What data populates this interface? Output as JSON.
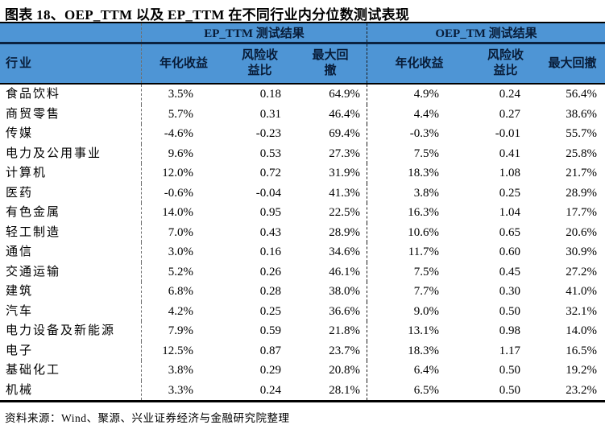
{
  "title": "图表 18、OEP_TTM 以及 EP_TTM 在不同行业内分位数测试表现",
  "table": {
    "industry_header": "行业",
    "groups": [
      {
        "label": "EP_TTM 测试结果",
        "columns": [
          "年化收益",
          "风险收益比",
          "最大回撤"
        ]
      },
      {
        "label": "OEP_TM 测试结果",
        "columns": [
          "年化收益",
          "风险收益比",
          "最大回撤"
        ]
      }
    ],
    "rows": [
      {
        "industry": "食品饮料",
        "ep": [
          "3.5%",
          "0.18",
          "64.9%"
        ],
        "oep": [
          "4.9%",
          "0.24",
          "56.4%"
        ]
      },
      {
        "industry": "商贸零售",
        "ep": [
          "5.7%",
          "0.31",
          "46.4%"
        ],
        "oep": [
          "4.4%",
          "0.27",
          "38.6%"
        ]
      },
      {
        "industry": "传媒",
        "ep": [
          "-4.6%",
          "-0.23",
          "69.4%"
        ],
        "oep": [
          "-0.3%",
          "-0.01",
          "55.7%"
        ]
      },
      {
        "industry": "电力及公用事业",
        "ep": [
          "9.6%",
          "0.53",
          "27.3%"
        ],
        "oep": [
          "7.5%",
          "0.41",
          "25.8%"
        ]
      },
      {
        "industry": "计算机",
        "ep": [
          "12.0%",
          "0.72",
          "31.9%"
        ],
        "oep": [
          "18.3%",
          "1.08",
          "21.7%"
        ]
      },
      {
        "industry": "医药",
        "ep": [
          "-0.6%",
          "-0.04",
          "41.3%"
        ],
        "oep": [
          "3.8%",
          "0.25",
          "28.9%"
        ]
      },
      {
        "industry": "有色金属",
        "ep": [
          "14.0%",
          "0.95",
          "22.5%"
        ],
        "oep": [
          "16.3%",
          "1.04",
          "17.7%"
        ]
      },
      {
        "industry": "轻工制造",
        "ep": [
          "7.0%",
          "0.43",
          "28.9%"
        ],
        "oep": [
          "10.6%",
          "0.65",
          "20.6%"
        ]
      },
      {
        "industry": "通信",
        "ep": [
          "3.0%",
          "0.16",
          "34.6%"
        ],
        "oep": [
          "11.7%",
          "0.60",
          "30.9%"
        ]
      },
      {
        "industry": "交通运输",
        "ep": [
          "5.2%",
          "0.26",
          "46.1%"
        ],
        "oep": [
          "7.5%",
          "0.45",
          "27.2%"
        ]
      },
      {
        "industry": "建筑",
        "ep": [
          "6.8%",
          "0.28",
          "38.0%"
        ],
        "oep": [
          "7.7%",
          "0.30",
          "41.0%"
        ]
      },
      {
        "industry": "汽车",
        "ep": [
          "4.2%",
          "0.25",
          "36.6%"
        ],
        "oep": [
          "9.0%",
          "0.50",
          "32.1%"
        ]
      },
      {
        "industry": "电力设备及新能源",
        "ep": [
          "7.9%",
          "0.59",
          "21.8%"
        ],
        "oep": [
          "13.1%",
          "0.98",
          "14.0%"
        ]
      },
      {
        "industry": "电子",
        "ep": [
          "12.5%",
          "0.87",
          "23.7%"
        ],
        "oep": [
          "18.3%",
          "1.17",
          "16.5%"
        ]
      },
      {
        "industry": "基础化工",
        "ep": [
          "3.8%",
          "0.29",
          "20.8%"
        ],
        "oep": [
          "6.4%",
          "0.50",
          "19.2%"
        ]
      },
      {
        "industry": "机械",
        "ep": [
          "3.3%",
          "0.24",
          "28.1%"
        ],
        "oep": [
          "6.5%",
          "0.50",
          "23.2%"
        ]
      }
    ]
  },
  "footer": "资料来源：Wind、聚源、兴业证券经济与金融研究院整理",
  "colors": {
    "header_bg": "#4E95D5",
    "header_text": "#081C38",
    "divider_navy": "#0B2240",
    "border_black": "#000000"
  }
}
